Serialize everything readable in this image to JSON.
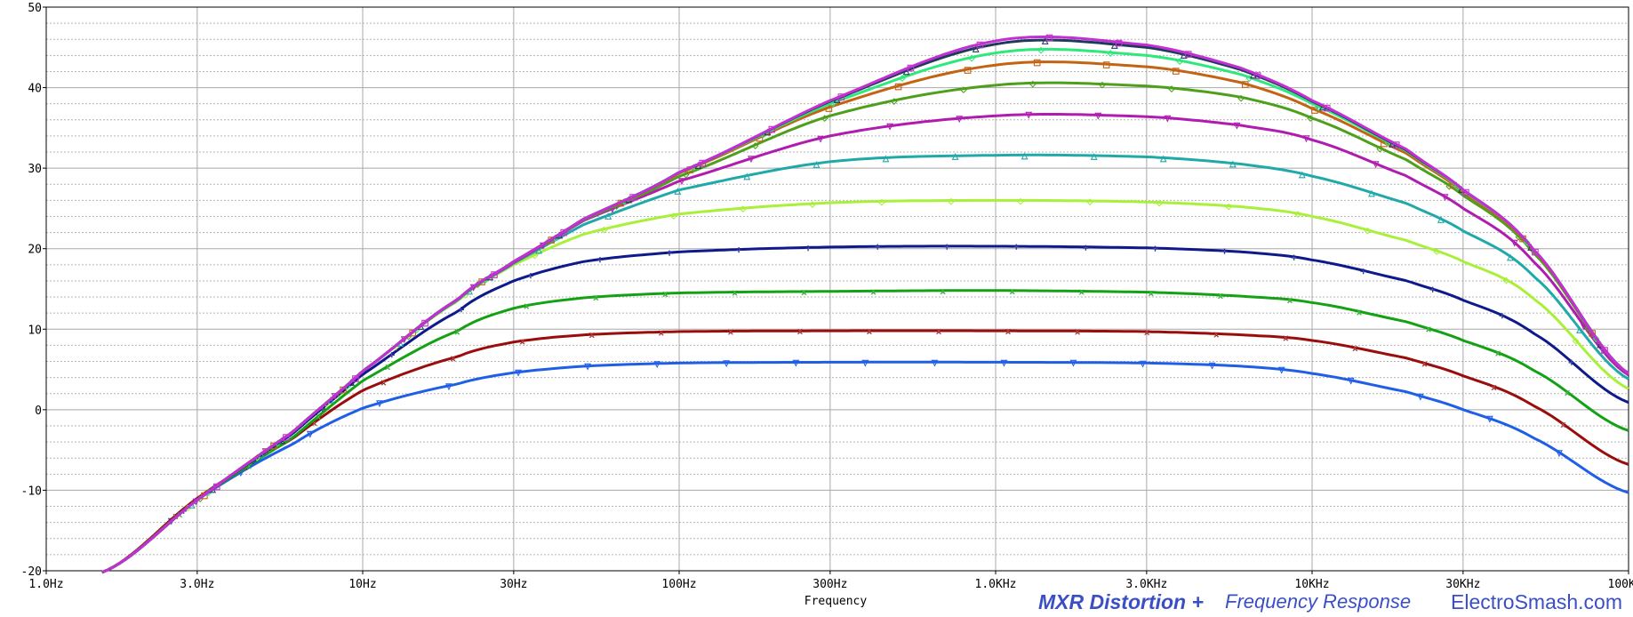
{
  "chart_data": {
    "type": "line",
    "x_scale": "log",
    "xlim": [
      1,
      100000
    ],
    "ylim": [
      -20,
      50
    ],
    "y_ticks": [
      -20,
      -10,
      0,
      10,
      20,
      30,
      40,
      50
    ],
    "y_tick_labels": [
      "-20",
      "-10",
      "0",
      "10",
      "20",
      "30",
      "40",
      "50"
    ],
    "x_ticks": [
      1,
      3,
      10,
      30,
      100,
      300,
      1000,
      3000,
      10000,
      30000,
      100000
    ],
    "x_tick_labels": [
      "1.0Hz",
      "3.0Hz",
      "10Hz",
      "30Hz",
      "100Hz",
      "300Hz",
      "1.0KHz",
      "3.0KHz",
      "10KHz",
      "30KHz",
      "100KHz"
    ],
    "xlabel": "Frequency",
    "grid": true,
    "series": [
      {
        "color": "#1f5fe8",
        "marker": "▽",
        "values": [
          [
            1.5,
            -20.2
          ],
          [
            3,
            -11.2
          ],
          [
            6,
            -4.3
          ],
          [
            10,
            0.2
          ],
          [
            20,
            3.2
          ],
          [
            30,
            4.6
          ],
          [
            50,
            5.4
          ],
          [
            100,
            5.8
          ],
          [
            300,
            5.9
          ],
          [
            1000,
            5.9
          ],
          [
            3000,
            5.8
          ],
          [
            6000,
            5.4
          ],
          [
            10000,
            4.5
          ],
          [
            20000,
            2.2
          ],
          [
            30000,
            0
          ],
          [
            50000,
            -3.5
          ],
          [
            100000,
            -10.3
          ]
        ]
      },
      {
        "color": "#9a0d0d",
        "marker": "x",
        "values": [
          [
            1.5,
            -20.2
          ],
          [
            3,
            -11
          ],
          [
            6,
            -3.6
          ],
          [
            10,
            2.4
          ],
          [
            20,
            6.6
          ],
          [
            30,
            8.4
          ],
          [
            50,
            9.3
          ],
          [
            100,
            9.7
          ],
          [
            300,
            9.8
          ],
          [
            1000,
            9.8
          ],
          [
            3000,
            9.7
          ],
          [
            6000,
            9.3
          ],
          [
            10000,
            8.6
          ],
          [
            20000,
            6.4
          ],
          [
            30000,
            4.2
          ],
          [
            50000,
            0.5
          ],
          [
            100000,
            -6.8
          ]
        ]
      },
      {
        "color": "#14a214",
        "marker": "x",
        "values": [
          [
            1.5,
            -20.2
          ],
          [
            3,
            -11.2
          ],
          [
            6,
            -3.5
          ],
          [
            10,
            3.6
          ],
          [
            20,
            9.8
          ],
          [
            30,
            12.6
          ],
          [
            50,
            13.9
          ],
          [
            100,
            14.5
          ],
          [
            300,
            14.7
          ],
          [
            1000,
            14.8
          ],
          [
            3000,
            14.6
          ],
          [
            6000,
            14.1
          ],
          [
            10000,
            13.3
          ],
          [
            20000,
            10.9
          ],
          [
            30000,
            8.6
          ],
          [
            50000,
            4.9
          ],
          [
            100000,
            -2.6
          ]
        ]
      },
      {
        "color": "#0e1a8c",
        "marker": "+",
        "values": [
          [
            1.5,
            -20.2
          ],
          [
            3,
            -11.2
          ],
          [
            6,
            -3
          ],
          [
            10,
            4.4
          ],
          [
            20,
            12.2
          ],
          [
            30,
            16
          ],
          [
            50,
            18.4
          ],
          [
            100,
            19.6
          ],
          [
            300,
            20.2
          ],
          [
            1000,
            20.3
          ],
          [
            3000,
            20.1
          ],
          [
            6000,
            19.6
          ],
          [
            10000,
            18.6
          ],
          [
            20000,
            16
          ],
          [
            30000,
            13.6
          ],
          [
            50000,
            9.5
          ],
          [
            100000,
            0.9
          ]
        ]
      },
      {
        "color": "#a8f03a",
        "marker": "◇",
        "values": [
          [
            1.5,
            -20.2
          ],
          [
            3,
            -11.2
          ],
          [
            6,
            -2.8
          ],
          [
            10,
            4.8
          ],
          [
            20,
            13.5
          ],
          [
            30,
            18
          ],
          [
            50,
            21.8
          ],
          [
            100,
            24.3
          ],
          [
            300,
            25.7
          ],
          [
            1000,
            26
          ],
          [
            3000,
            25.8
          ],
          [
            6000,
            25.2
          ],
          [
            10000,
            24
          ],
          [
            20000,
            21
          ],
          [
            30000,
            18.4
          ],
          [
            50000,
            13.8
          ],
          [
            100000,
            2.6
          ]
        ]
      },
      {
        "color": "#21a9a9",
        "marker": "△",
        "values": [
          [
            1.5,
            -20.2
          ],
          [
            3,
            -11.2
          ],
          [
            6,
            -2.8
          ],
          [
            10,
            4.8
          ],
          [
            20,
            13.6
          ],
          [
            30,
            18.2
          ],
          [
            50,
            23
          ],
          [
            100,
            27.3
          ],
          [
            300,
            30.8
          ],
          [
            1000,
            31.6
          ],
          [
            3000,
            31.4
          ],
          [
            6000,
            30.5
          ],
          [
            10000,
            29
          ],
          [
            20000,
            25.6
          ],
          [
            30000,
            22.2
          ],
          [
            50000,
            16.6
          ],
          [
            100000,
            3.8
          ]
        ]
      },
      {
        "color": "#b01cb0",
        "marker": "▽",
        "values": [
          [
            1.5,
            -20.2
          ],
          [
            3,
            -11.2
          ],
          [
            6,
            -2.8
          ],
          [
            10,
            4.8
          ],
          [
            20,
            13.7
          ],
          [
            30,
            18.3
          ],
          [
            50,
            23.5
          ],
          [
            100,
            28.4
          ],
          [
            300,
            34
          ],
          [
            1000,
            36.5
          ],
          [
            3000,
            36.4
          ],
          [
            6000,
            35.3
          ],
          [
            10000,
            33.5
          ],
          [
            20000,
            29
          ],
          [
            30000,
            25
          ],
          [
            50000,
            18.4
          ],
          [
            100000,
            4.3
          ]
        ]
      },
      {
        "color": "#4ea01c",
        "marker": "◇",
        "values": [
          [
            1.5,
            -20.2
          ],
          [
            3,
            -11.2
          ],
          [
            6,
            -2.8
          ],
          [
            10,
            4.8
          ],
          [
            20,
            13.7
          ],
          [
            30,
            18.4
          ],
          [
            50,
            23.6
          ],
          [
            100,
            29
          ],
          [
            300,
            36.5
          ],
          [
            1000,
            40.3
          ],
          [
            3000,
            40.2
          ],
          [
            6000,
            38.8
          ],
          [
            10000,
            36.2
          ],
          [
            20000,
            31
          ],
          [
            30000,
            26.6
          ],
          [
            50000,
            19.5
          ],
          [
            100000,
            4.5
          ]
        ]
      },
      {
        "color": "#c26414",
        "marker": "□",
        "values": [
          [
            1.5,
            -20.2
          ],
          [
            3,
            -11.2
          ],
          [
            6,
            -2.8
          ],
          [
            10,
            4.8
          ],
          [
            20,
            13.7
          ],
          [
            30,
            18.4
          ],
          [
            50,
            23.7
          ],
          [
            100,
            29.4
          ],
          [
            300,
            37.6
          ],
          [
            1000,
            42.8
          ],
          [
            3000,
            42.6
          ],
          [
            6000,
            40.6
          ],
          [
            10000,
            37.4
          ],
          [
            20000,
            31.8
          ],
          [
            30000,
            27
          ],
          [
            50000,
            19.8
          ],
          [
            100000,
            4.5
          ]
        ]
      },
      {
        "color": "#2de87a",
        "marker": "◇",
        "values": [
          [
            1.5,
            -20.2
          ],
          [
            3,
            -11.2
          ],
          [
            6,
            -2.8
          ],
          [
            10,
            4.8
          ],
          [
            20,
            13.7
          ],
          [
            30,
            18.4
          ],
          [
            50,
            23.7
          ],
          [
            100,
            29.5
          ],
          [
            300,
            38
          ],
          [
            1000,
            44.3
          ],
          [
            3000,
            44
          ],
          [
            6000,
            41.6
          ],
          [
            10000,
            38
          ],
          [
            20000,
            32.1
          ],
          [
            30000,
            27.2
          ],
          [
            50000,
            19.9
          ],
          [
            100000,
            4.5
          ]
        ]
      },
      {
        "color": "#1f3a5c",
        "marker": "△",
        "values": [
          [
            1.5,
            -20.2
          ],
          [
            3,
            -11.2
          ],
          [
            6,
            -2.8
          ],
          [
            10,
            4.8
          ],
          [
            20,
            13.7
          ],
          [
            30,
            18.4
          ],
          [
            50,
            23.7
          ],
          [
            100,
            29.5
          ],
          [
            300,
            38.3
          ],
          [
            1000,
            45.4
          ],
          [
            3000,
            45
          ],
          [
            6000,
            42.2
          ],
          [
            10000,
            38.3
          ],
          [
            20000,
            32.2
          ],
          [
            30000,
            27.3
          ],
          [
            50000,
            19.9
          ],
          [
            100000,
            4.5
          ]
        ]
      },
      {
        "color": "#c42fd4",
        "marker": "□",
        "values": [
          [
            1.5,
            -20.2
          ],
          [
            3,
            -11.2
          ],
          [
            6,
            -2.8
          ],
          [
            10,
            4.8
          ],
          [
            20,
            13.7
          ],
          [
            30,
            18.4
          ],
          [
            50,
            23.7
          ],
          [
            100,
            29.5
          ],
          [
            300,
            38.4
          ],
          [
            1000,
            45.8
          ],
          [
            3000,
            45.3
          ],
          [
            6000,
            42.4
          ],
          [
            10000,
            38.4
          ],
          [
            20000,
            32.3
          ],
          [
            30000,
            27.3
          ],
          [
            50000,
            19.9
          ],
          [
            100000,
            4.5
          ]
        ]
      }
    ]
  },
  "footer": {
    "title": "MXR Distortion +",
    "subtitle": "Frequency Response",
    "site": "ElectroSmash.com"
  }
}
